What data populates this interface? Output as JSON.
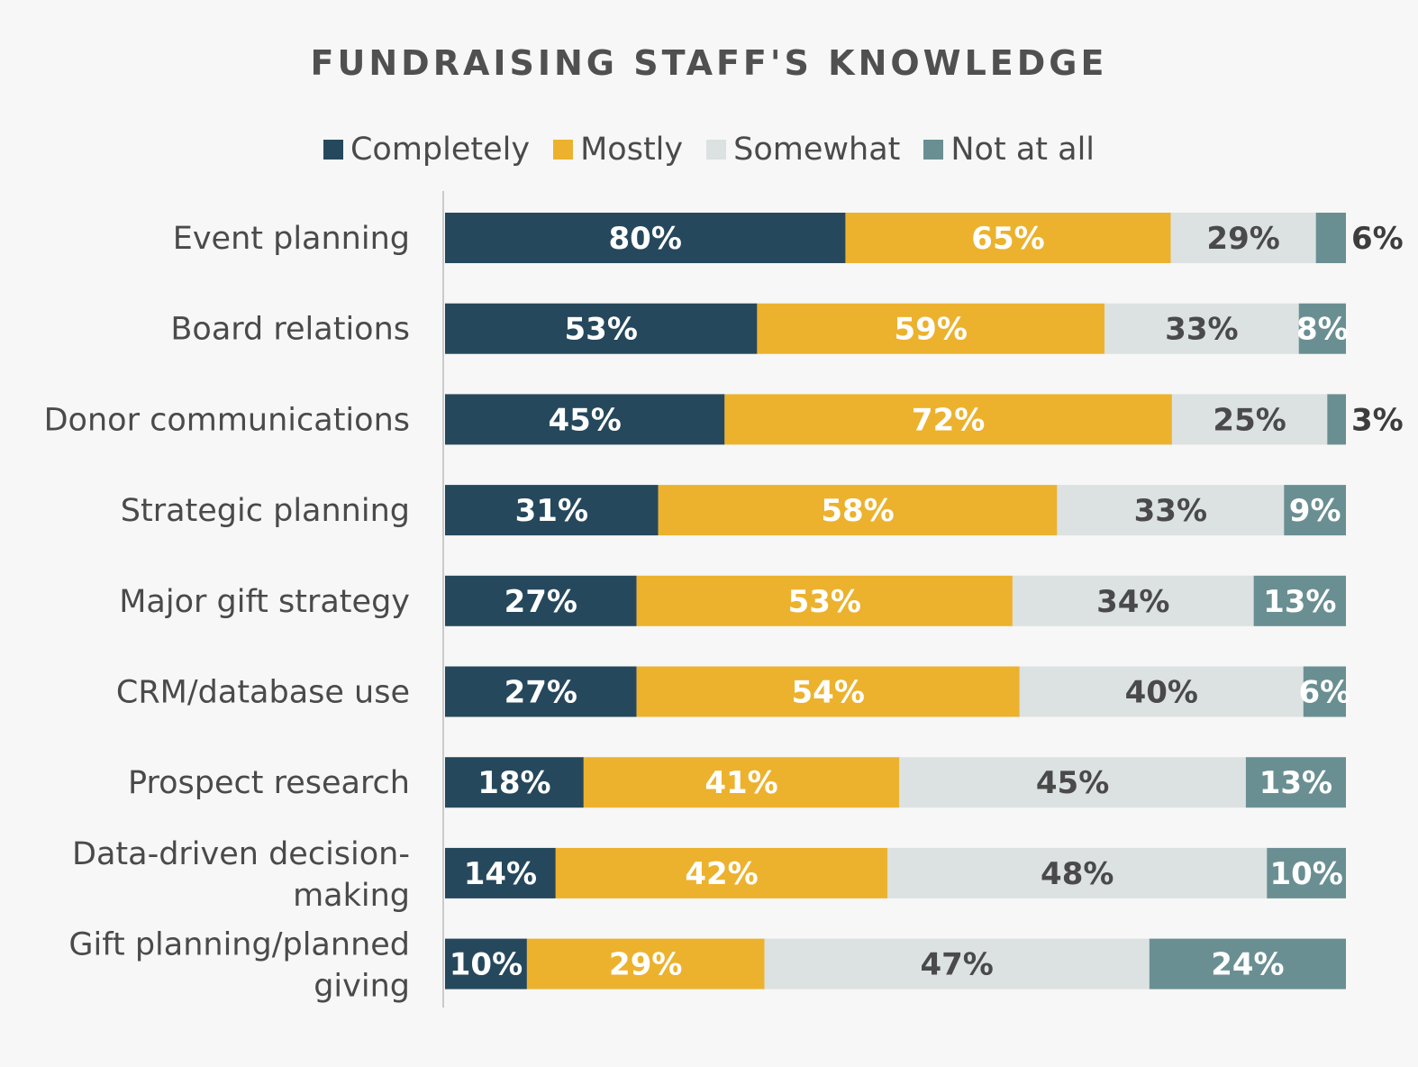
{
  "chart_data": {
    "type": "bar",
    "orientation": "horizontal",
    "stacked": true,
    "title": "FUNDRAISING STAFF'S KNOWLEDGE",
    "legend_position": "top",
    "categories": [
      "Event planning",
      "Board relations",
      "Donor communications",
      "Strategic planning",
      "Major gift strategy",
      "CRM/database use",
      "Prospect research",
      "Data-driven decision-making",
      "Gift planning/planned giving"
    ],
    "category_lines": [
      [
        "Event planning"
      ],
      [
        "Board relations"
      ],
      [
        "Donor communications"
      ],
      [
        "Strategic planning"
      ],
      [
        "Major gift strategy"
      ],
      [
        "CRM/database use"
      ],
      [
        "Prospect research"
      ],
      [
        "Data-driven decision-",
        "making"
      ],
      [
        "Gift planning/planned",
        "giving"
      ]
    ],
    "series": [
      {
        "name": "Completely",
        "color": "#26485c",
        "label_color": "#ffffff",
        "values": [
          80,
          53,
          45,
          31,
          27,
          27,
          18,
          14,
          10
        ]
      },
      {
        "name": "Mostly",
        "color": "#ecb22e",
        "label_color": "#ffffff",
        "values": [
          65,
          59,
          72,
          58,
          53,
          54,
          41,
          42,
          29
        ]
      },
      {
        "name": "Somewhat",
        "color": "#dce1e1",
        "label_color": "#4a4a4a",
        "values": [
          29,
          33,
          25,
          33,
          34,
          40,
          45,
          48,
          47
        ]
      },
      {
        "name": "Not at all",
        "color": "#6a8f93",
        "label_color": "#ffffff",
        "values": [
          6,
          8,
          3,
          9,
          13,
          6,
          13,
          10,
          24
        ]
      }
    ],
    "value_suffix": "%",
    "grid": false
  }
}
